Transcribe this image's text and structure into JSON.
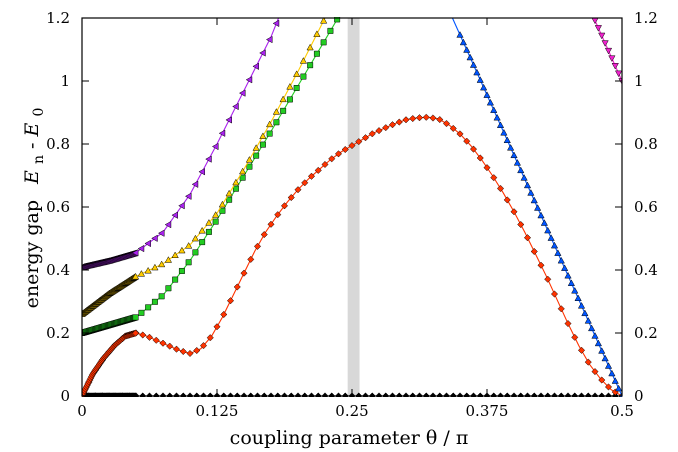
{
  "chart_data": {
    "type": "line",
    "title": "",
    "xlabel": "coupling parameter   θ / π",
    "ylabel": {
      "text": "energy gap",
      "sym1": "E",
      "sub1": "n",
      "dash": "-",
      "sym2": "E",
      "sub2": "0"
    },
    "xlim": [
      0,
      0.5
    ],
    "ylim": [
      0,
      1.2
    ],
    "x_ticks": [
      0,
      0.125,
      0.25,
      0.375,
      0.5
    ],
    "x_tick_labels": [
      "0",
      "0.125",
      "0.25",
      "0.375",
      "0.5"
    ],
    "y_ticks": [
      0,
      0.2,
      0.4,
      0.6,
      0.8,
      1,
      1.2
    ],
    "y_tick_labels": [
      "0",
      "0.2",
      "0.4",
      "0.6",
      "0.8",
      "1",
      "1.2"
    ],
    "shaded_band": {
      "x": [
        0.246,
        0.257
      ],
      "color": "#d8d8d8"
    },
    "grid": false,
    "legend": "none",
    "colors": {
      "black": "#000000",
      "red": "#ff3300",
      "green": "#22cc22",
      "orange": "#ffcc00",
      "violet": "#aa22ee",
      "blue": "#0055ff",
      "magenta": "#ee22cc"
    },
    "series": [
      {
        "color_key": "black",
        "marker": "diamond",
        "points": [
          [
            0,
            0
          ],
          [
            0.025,
            0
          ],
          [
            0.05,
            0
          ],
          [
            0.1,
            0
          ],
          [
            0.15,
            0
          ],
          [
            0.2,
            0
          ],
          [
            0.25,
            0
          ],
          [
            0.3,
            0
          ],
          [
            0.35,
            0
          ],
          [
            0.4,
            0
          ],
          [
            0.45,
            0
          ],
          [
            0.5,
            0
          ]
        ],
        "marker_x": {
          "start": 0,
          "end": 0.5,
          "step": 0.00625
        }
      },
      {
        "color_key": "red",
        "marker": "diamond",
        "points": [
          [
            0,
            0
          ],
          [
            0.01,
            0.07
          ],
          [
            0.02,
            0.12
          ],
          [
            0.03,
            0.16
          ],
          [
            0.04,
            0.19
          ],
          [
            0.05,
            0.2
          ],
          [
            0.06,
            0.19
          ],
          [
            0.07,
            0.175
          ],
          [
            0.08,
            0.16
          ],
          [
            0.09,
            0.145
          ],
          [
            0.1,
            0.135
          ],
          [
            0.11,
            0.15
          ],
          [
            0.12,
            0.19
          ],
          [
            0.13,
            0.25
          ],
          [
            0.14,
            0.32
          ],
          [
            0.15,
            0.39
          ],
          [
            0.16,
            0.46
          ],
          [
            0.17,
            0.52
          ],
          [
            0.18,
            0.57
          ],
          [
            0.19,
            0.615
          ],
          [
            0.2,
            0.655
          ],
          [
            0.21,
            0.69
          ],
          [
            0.22,
            0.72
          ],
          [
            0.23,
            0.75
          ],
          [
            0.24,
            0.775
          ],
          [
            0.25,
            0.795
          ],
          [
            0.26,
            0.815
          ],
          [
            0.27,
            0.835
          ],
          [
            0.28,
            0.85
          ],
          [
            0.29,
            0.865
          ],
          [
            0.3,
            0.877
          ],
          [
            0.31,
            0.883
          ],
          [
            0.32,
            0.885
          ],
          [
            0.33,
            0.88
          ],
          [
            0.34,
            0.86
          ],
          [
            0.35,
            0.832
          ],
          [
            0.36,
            0.795
          ],
          [
            0.37,
            0.75
          ],
          [
            0.38,
            0.7
          ],
          [
            0.39,
            0.645
          ],
          [
            0.4,
            0.585
          ],
          [
            0.41,
            0.52
          ],
          [
            0.42,
            0.45
          ],
          [
            0.43,
            0.38
          ],
          [
            0.44,
            0.305
          ],
          [
            0.45,
            0.23
          ],
          [
            0.46,
            0.16
          ],
          [
            0.47,
            0.1
          ],
          [
            0.48,
            0.055
          ],
          [
            0.49,
            0.02
          ],
          [
            0.5,
            0
          ]
        ],
        "marker_x": {
          "start": 0,
          "end": 0.5,
          "step": 0.00625
        }
      },
      {
        "color_key": "green",
        "marker": "square",
        "points": [
          [
            0,
            0.2
          ],
          [
            0.025,
            0.225
          ],
          [
            0.05,
            0.25
          ],
          [
            0.075,
            0.32
          ],
          [
            0.1,
            0.43
          ],
          [
            0.125,
            0.56
          ],
          [
            0.15,
            0.7
          ],
          [
            0.175,
            0.84
          ],
          [
            0.2,
            0.985
          ],
          [
            0.225,
            1.13
          ],
          [
            0.237,
            1.2
          ]
        ],
        "marker_x": {
          "start": 0.055,
          "end": 0.237,
          "step": 0.00625
        }
      },
      {
        "color_key": "orange",
        "marker": "triangle-up",
        "points": [
          [
            0,
            0.26
          ],
          [
            0.025,
            0.325
          ],
          [
            0.05,
            0.38
          ],
          [
            0.075,
            0.42
          ],
          [
            0.1,
            0.48
          ],
          [
            0.125,
            0.58
          ],
          [
            0.15,
            0.72
          ],
          [
            0.175,
            0.87
          ],
          [
            0.2,
            1.03
          ],
          [
            0.225,
            1.2
          ]
        ],
        "marker_x": {
          "start": 0.055,
          "end": 0.225,
          "step": 0.00625
        }
      },
      {
        "color_key": "violet",
        "marker": "triangle-left",
        "points": [
          [
            0,
            0.41
          ],
          [
            0.025,
            0.43
          ],
          [
            0.05,
            0.455
          ],
          [
            0.075,
            0.52
          ],
          [
            0.1,
            0.64
          ],
          [
            0.125,
            0.8
          ],
          [
            0.15,
            0.97
          ],
          [
            0.175,
            1.14
          ],
          [
            0.182,
            1.2
          ]
        ],
        "marker_x": {
          "start": 0.055,
          "end": 0.182,
          "step": 0.00625
        }
      },
      {
        "color_key": "blue",
        "marker": "triangle-up",
        "points": [
          [
            0.343,
            1.2
          ],
          [
            0.5,
            0
          ]
        ],
        "marker_x": {
          "start": 0.35,
          "end": 0.5,
          "step": 0.003125
        }
      },
      {
        "color_key": "magenta",
        "marker": "triangle-down",
        "points": [
          [
            0.474,
            1.2
          ],
          [
            0.5,
            1.0
          ]
        ],
        "marker_x": {
          "start": 0.475,
          "end": 0.5,
          "step": 0.003125
        }
      }
    ],
    "dense_marker_segments": [
      {
        "series_index": 0,
        "x": [
          0,
          0.05
        ],
        "step": 0.0008
      },
      {
        "series_index": 1,
        "x": [
          0,
          0.05
        ],
        "step": 0.0008
      },
      {
        "series_index": 2,
        "x": [
          0,
          0.05
        ],
        "step": 0.0008
      },
      {
        "series_index": 3,
        "x": [
          0,
          0.05
        ],
        "step": 0.0008
      },
      {
        "series_index": 4,
        "x": [
          0,
          0.05
        ],
        "step": 0.0008
      }
    ]
  }
}
